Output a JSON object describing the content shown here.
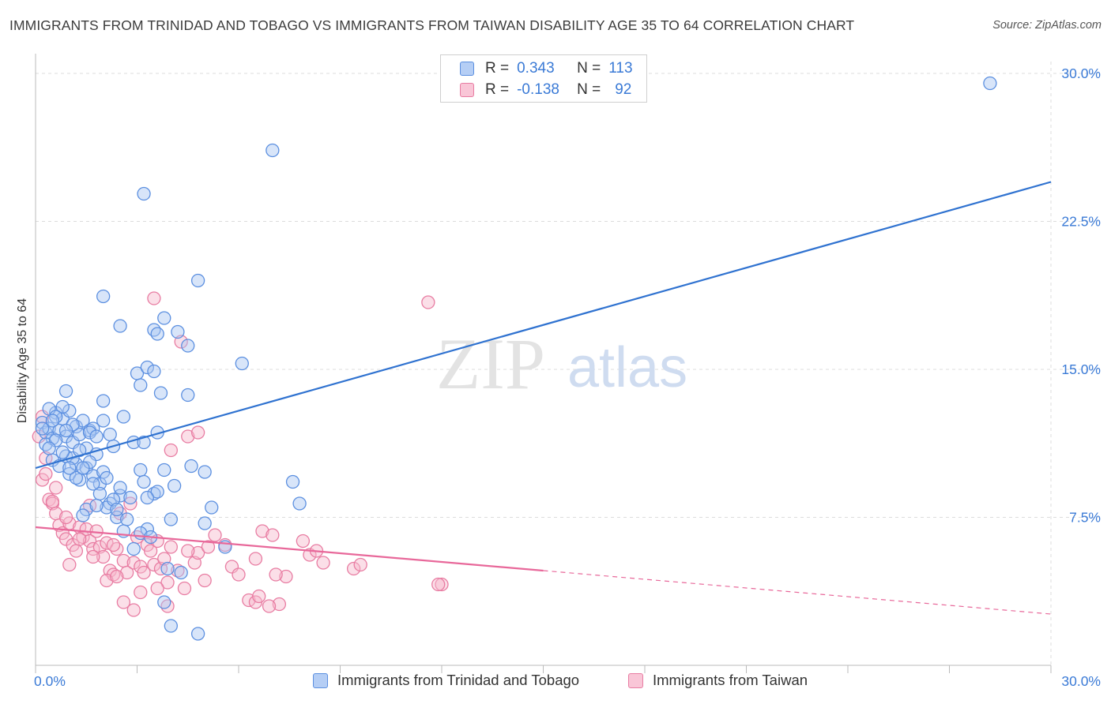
{
  "header": {
    "title": "IMMIGRANTS FROM TRINIDAD AND TOBAGO VS IMMIGRANTS FROM TAIWAN DISABILITY AGE 35 TO 64 CORRELATION CHART",
    "source": "Source: ZipAtlas.com"
  },
  "legend": {
    "rows": [
      {
        "r_label": "R =",
        "r_value": "0.343",
        "n_label": "N =",
        "n_value": "113"
      },
      {
        "r_label": "R =",
        "r_value": "-0.138",
        "n_label": "N =",
        "n_value": "92"
      }
    ]
  },
  "watermark": {
    "part1": "ZIP",
    "part2": "atlas"
  },
  "colors": {
    "blue_fill": "#a9c6f2",
    "blue_stroke": "#5b8fe0",
    "blue_line": "#2f72d0",
    "pink_fill": "#f6b9cd",
    "pink_stroke": "#e87ca2",
    "pink_line": "#e8689a",
    "grid": "#dcdcdc",
    "tick_text": "#3a7ad6"
  },
  "chart_data": {
    "type": "scatter",
    "title": "IMMIGRANTS FROM TRINIDAD AND TOBAGO VS IMMIGRANTS FROM TAIWAN DISABILITY AGE 35 TO 64 CORRELATION CHART",
    "xlabel": "",
    "ylabel": "Disability Age 35 to 64",
    "xlim": [
      0,
      30
    ],
    "ylim": [
      0,
      31
    ],
    "x_tick_labels": [
      "0.0%",
      "30.0%"
    ],
    "y_ticks": [
      7.5,
      15,
      22.5,
      30
    ],
    "y_tick_labels": [
      "7.5%",
      "15.0%",
      "22.5%",
      "30.0%"
    ],
    "grid": true,
    "legend_placement": "top-center",
    "series": [
      {
        "name": "Immigrants from Trinidad and Tobago",
        "color": "#5b8fe0",
        "r": 0.343,
        "n": 113,
        "trend": {
          "x": [
            0,
            30
          ],
          "y": [
            10.0,
            24.5
          ]
        },
        "points": [
          [
            0.2,
            12.3
          ],
          [
            0.3,
            11.8
          ],
          [
            0.4,
            12.0
          ],
          [
            0.5,
            11.5
          ],
          [
            0.3,
            11.2
          ],
          [
            0.6,
            12.8
          ],
          [
            0.7,
            11.9
          ],
          [
            0.8,
            12.5
          ],
          [
            0.9,
            11.6
          ],
          [
            1.0,
            12.9
          ],
          [
            1.1,
            11.3
          ],
          [
            1.2,
            12.1
          ],
          [
            1.3,
            11.7
          ],
          [
            1.4,
            12.4
          ],
          [
            1.5,
            11.0
          ],
          [
            1.6,
            11.9
          ],
          [
            0.5,
            10.4
          ],
          [
            0.7,
            10.1
          ],
          [
            0.9,
            10.6
          ],
          [
            1.0,
            9.7
          ],
          [
            1.2,
            10.2
          ],
          [
            1.3,
            9.4
          ],
          [
            1.5,
            10.0
          ],
          [
            1.7,
            9.6
          ],
          [
            1.8,
            10.7
          ],
          [
            1.9,
            9.2
          ],
          [
            2.0,
            9.8
          ],
          [
            1.1,
            10.5
          ],
          [
            0.8,
            13.1
          ],
          [
            0.9,
            13.9
          ],
          [
            2.0,
            13.4
          ],
          [
            2.5,
            17.2
          ],
          [
            2.0,
            12.4
          ],
          [
            1.7,
            12.0
          ],
          [
            1.6,
            11.8
          ],
          [
            2.3,
            11.1
          ],
          [
            2.5,
            8.6
          ],
          [
            2.2,
            8.2
          ],
          [
            2.8,
            8.5
          ],
          [
            2.1,
            8.0
          ],
          [
            2.4,
            7.5
          ],
          [
            2.7,
            7.4
          ],
          [
            2.6,
            12.6
          ],
          [
            2.9,
            11.3
          ],
          [
            3.2,
            11.3
          ],
          [
            3.1,
            9.9
          ],
          [
            3.5,
            8.7
          ],
          [
            3.6,
            8.8
          ],
          [
            3.3,
            6.9
          ],
          [
            2.6,
            6.8
          ],
          [
            3.1,
            6.7
          ],
          [
            3.4,
            6.5
          ],
          [
            3.0,
            14.8
          ],
          [
            3.1,
            14.2
          ],
          [
            3.6,
            11.8
          ],
          [
            3.2,
            9.3
          ],
          [
            3.8,
            9.9
          ],
          [
            4.0,
            7.4
          ],
          [
            4.1,
            9.1
          ],
          [
            3.2,
            23.9
          ],
          [
            2.0,
            18.7
          ],
          [
            3.5,
            17.0
          ],
          [
            3.6,
            16.8
          ],
          [
            3.8,
            17.6
          ],
          [
            4.2,
            16.9
          ],
          [
            3.3,
            15.1
          ],
          [
            3.5,
            14.9
          ],
          [
            4.5,
            13.7
          ],
          [
            3.7,
            13.8
          ],
          [
            4.6,
            10.1
          ],
          [
            5.0,
            9.8
          ],
          [
            4.5,
            16.2
          ],
          [
            4.8,
            19.5
          ],
          [
            5.0,
            7.2
          ],
          [
            5.2,
            8.0
          ],
          [
            6.1,
            15.3
          ],
          [
            7.0,
            26.1
          ],
          [
            7.6,
            9.3
          ],
          [
            7.8,
            8.2
          ],
          [
            5.6,
            6.0
          ],
          [
            4.3,
            4.7
          ],
          [
            3.8,
            3.2
          ],
          [
            4.8,
            1.6
          ],
          [
            4.0,
            2.0
          ],
          [
            1.5,
            7.9
          ],
          [
            1.8,
            8.1
          ],
          [
            1.4,
            7.6
          ],
          [
            0.6,
            11.4
          ],
          [
            0.2,
            12.0
          ],
          [
            0.4,
            13.0
          ],
          [
            0.6,
            12.6
          ],
          [
            1.1,
            12.2
          ],
          [
            1.3,
            10.9
          ],
          [
            1.6,
            10.3
          ],
          [
            1.8,
            11.6
          ],
          [
            0.9,
            11.9
          ],
          [
            0.5,
            12.4
          ],
          [
            2.1,
            9.5
          ],
          [
            2.3,
            8.4
          ],
          [
            2.5,
            9.0
          ],
          [
            1.9,
            8.7
          ],
          [
            1.2,
            9.5
          ],
          [
            1.0,
            10.0
          ],
          [
            0.8,
            10.8
          ],
          [
            1.4,
            10.0
          ],
          [
            1.7,
            9.2
          ],
          [
            2.2,
            11.7
          ],
          [
            2.4,
            7.9
          ],
          [
            3.3,
            8.5
          ],
          [
            3.9,
            4.9
          ],
          [
            2.9,
            5.9
          ],
          [
            28.2,
            29.5
          ],
          [
            0.4,
            11.0
          ]
        ]
      },
      {
        "name": "Immigrants from Taiwan",
        "color": "#e87ca2",
        "r": -0.138,
        "n": 92,
        "trend": {
          "x": [
            0,
            15
          ],
          "y": [
            7.0,
            4.8
          ]
        },
        "trend_dashed": {
          "x": [
            15,
            30
          ],
          "y": [
            4.8,
            2.6
          ]
        },
        "points": [
          [
            0.1,
            11.6
          ],
          [
            0.2,
            12.6
          ],
          [
            0.2,
            9.4
          ],
          [
            0.3,
            9.7
          ],
          [
            0.4,
            8.4
          ],
          [
            0.5,
            8.2
          ],
          [
            0.6,
            7.7
          ],
          [
            0.7,
            7.1
          ],
          [
            0.8,
            6.7
          ],
          [
            0.9,
            6.4
          ],
          [
            1.0,
            7.2
          ],
          [
            1.1,
            6.1
          ],
          [
            1.2,
            5.8
          ],
          [
            1.3,
            7.0
          ],
          [
            1.4,
            6.5
          ],
          [
            1.5,
            6.9
          ],
          [
            1.6,
            6.3
          ],
          [
            1.7,
            5.9
          ],
          [
            1.8,
            6.8
          ],
          [
            1.9,
            6.0
          ],
          [
            2.0,
            5.5
          ],
          [
            2.1,
            6.2
          ],
          [
            2.2,
            4.8
          ],
          [
            2.3,
            4.6
          ],
          [
            2.4,
            5.9
          ],
          [
            2.5,
            7.7
          ],
          [
            2.6,
            5.3
          ],
          [
            2.7,
            4.7
          ],
          [
            2.8,
            8.2
          ],
          [
            2.9,
            5.2
          ],
          [
            3.0,
            6.5
          ],
          [
            3.1,
            5.0
          ],
          [
            3.2,
            4.7
          ],
          [
            3.3,
            6.1
          ],
          [
            3.4,
            5.8
          ],
          [
            3.5,
            5.1
          ],
          [
            3.6,
            6.3
          ],
          [
            3.7,
            4.9
          ],
          [
            3.8,
            5.4
          ],
          [
            3.9,
            4.2
          ],
          [
            4.0,
            6.0
          ],
          [
            4.2,
            4.8
          ],
          [
            4.4,
            3.9
          ],
          [
            4.5,
            11.6
          ],
          [
            4.7,
            5.2
          ],
          [
            4.8,
            5.7
          ],
          [
            5.0,
            4.3
          ],
          [
            5.3,
            6.6
          ],
          [
            5.6,
            6.1
          ],
          [
            5.8,
            5.0
          ],
          [
            6.0,
            4.6
          ],
          [
            6.3,
            3.3
          ],
          [
            6.5,
            5.4
          ],
          [
            6.7,
            6.8
          ],
          [
            7.0,
            6.6
          ],
          [
            7.2,
            3.1
          ],
          [
            7.4,
            4.5
          ],
          [
            7.9,
            6.3
          ],
          [
            8.1,
            5.6
          ],
          [
            8.3,
            5.8
          ],
          [
            8.5,
            5.2
          ],
          [
            9.4,
            4.9
          ],
          [
            9.6,
            5.1
          ],
          [
            12.0,
            4.1
          ],
          [
            11.6,
            18.4
          ],
          [
            3.5,
            18.6
          ],
          [
            4.3,
            16.4
          ],
          [
            4.0,
            10.9
          ],
          [
            4.8,
            11.8
          ],
          [
            0.5,
            8.3
          ],
          [
            0.6,
            9.0
          ],
          [
            1.0,
            5.1
          ],
          [
            1.6,
            8.1
          ],
          [
            2.1,
            4.3
          ],
          [
            2.6,
            3.2
          ],
          [
            2.9,
            2.8
          ],
          [
            3.1,
            3.7
          ],
          [
            3.6,
            3.9
          ],
          [
            3.9,
            3.0
          ],
          [
            4.5,
            5.8
          ],
          [
            5.1,
            6.0
          ],
          [
            6.5,
            3.2
          ],
          [
            6.6,
            3.5
          ],
          [
            6.9,
            3.0
          ],
          [
            7.1,
            4.6
          ],
          [
            1.3,
            6.4
          ],
          [
            1.7,
            5.5
          ],
          [
            2.4,
            4.5
          ],
          [
            0.3,
            10.5
          ],
          [
            0.9,
            7.5
          ],
          [
            2.3,
            6.1
          ],
          [
            11.9,
            4.1
          ]
        ]
      }
    ]
  },
  "bottom_legend": {
    "items": [
      {
        "label": "Immigrants from Trinidad and Tobago"
      },
      {
        "label": "Immigrants from Taiwan"
      }
    ]
  }
}
